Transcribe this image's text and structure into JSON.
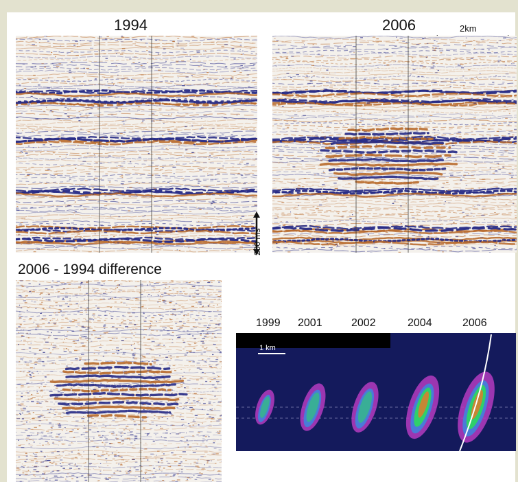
{
  "panels": {
    "p1994": {
      "title": "1994"
    },
    "p2006": {
      "title": "2006"
    },
    "difference": {
      "title": "2006 - 1994 difference"
    },
    "scale_bar": {
      "label": "2km"
    },
    "time_bar": {
      "label": "200 ms"
    },
    "plume": {
      "years": [
        "1999",
        "2001",
        "2002",
        "2004",
        "2006"
      ],
      "scale_label": "1 km"
    }
  },
  "colors": {
    "background": "#e3e2cf",
    "trough": "#262a86",
    "peak": "#b86a2c",
    "plume_bg": "#141a5c",
    "plume_outer": "#b43cc0",
    "plume_mid": "#4a7bd8",
    "plume_core": "#2fd06a",
    "plume_hot": "#e07a2a"
  }
}
